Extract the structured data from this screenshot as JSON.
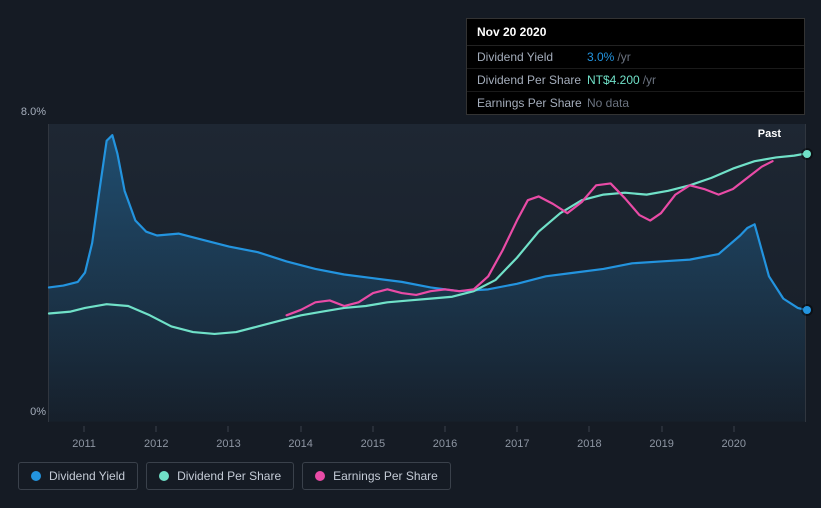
{
  "tooltip": {
    "date": "Nov 20 2020",
    "rows": [
      {
        "label": "Dividend Yield",
        "value": "3.0%",
        "suffix": "/yr",
        "value_color": "#2394df"
      },
      {
        "label": "Dividend Per Share",
        "value": "NT$4.200",
        "suffix": "/yr",
        "value_color": "#70e1c8"
      },
      {
        "label": "Earnings Per Share",
        "value": "No data",
        "suffix": "",
        "value_color": "#6b7380"
      }
    ]
  },
  "chart": {
    "type": "line",
    "background_color": "#151b24",
    "plot_bg_top": "#1e2733",
    "plot_bg_bottom": "#161d27",
    "y_axis": {
      "min": 0,
      "max": 8,
      "labels": [
        {
          "text": "8.0%",
          "value": 8
        },
        {
          "text": "0%",
          "value": 0
        }
      ],
      "color": "#a4adbb",
      "fontsize": 11
    },
    "x_axis": {
      "min": 2010.5,
      "max": 2021,
      "ticks": [
        2011,
        2012,
        2013,
        2014,
        2015,
        2016,
        2017,
        2018,
        2019,
        2020
      ],
      "color": "#8e96a3",
      "fontsize": 11,
      "tick_color": "#3a414b"
    },
    "past_label": "Past",
    "series": [
      {
        "name": "Dividend Yield",
        "color": "#2394df",
        "fill": true,
        "fill_color": "#2394df",
        "fill_opacity_top": 0.35,
        "fill_opacity_bottom": 0.02,
        "line_width": 2.2,
        "end_dot": true,
        "points": [
          [
            2010.5,
            3.6
          ],
          [
            2010.7,
            3.65
          ],
          [
            2010.9,
            3.75
          ],
          [
            2011.0,
            4.0
          ],
          [
            2011.1,
            4.8
          ],
          [
            2011.2,
            6.2
          ],
          [
            2011.3,
            7.55
          ],
          [
            2011.38,
            7.7
          ],
          [
            2011.45,
            7.2
          ],
          [
            2011.55,
            6.2
          ],
          [
            2011.7,
            5.4
          ],
          [
            2011.85,
            5.1
          ],
          [
            2012.0,
            5.0
          ],
          [
            2012.3,
            5.05
          ],
          [
            2012.6,
            4.9
          ],
          [
            2013.0,
            4.7
          ],
          [
            2013.4,
            4.55
          ],
          [
            2013.8,
            4.3
          ],
          [
            2014.2,
            4.1
          ],
          [
            2014.6,
            3.95
          ],
          [
            2015.0,
            3.85
          ],
          [
            2015.4,
            3.75
          ],
          [
            2015.8,
            3.6
          ],
          [
            2016.2,
            3.5
          ],
          [
            2016.6,
            3.55
          ],
          [
            2017.0,
            3.7
          ],
          [
            2017.4,
            3.9
          ],
          [
            2017.8,
            4.0
          ],
          [
            2018.2,
            4.1
          ],
          [
            2018.6,
            4.25
          ],
          [
            2019.0,
            4.3
          ],
          [
            2019.4,
            4.35
          ],
          [
            2019.8,
            4.5
          ],
          [
            2020.1,
            5.0
          ],
          [
            2020.2,
            5.2
          ],
          [
            2020.3,
            5.3
          ],
          [
            2020.4,
            4.6
          ],
          [
            2020.5,
            3.9
          ],
          [
            2020.7,
            3.3
          ],
          [
            2020.9,
            3.05
          ],
          [
            2021.0,
            3.0
          ]
        ]
      },
      {
        "name": "Dividend Per Share",
        "color": "#70e1c8",
        "fill": false,
        "line_width": 2.2,
        "end_dot": true,
        "points": [
          [
            2010.5,
            2.9
          ],
          [
            2010.8,
            2.95
          ],
          [
            2011.0,
            3.05
          ],
          [
            2011.3,
            3.15
          ],
          [
            2011.6,
            3.1
          ],
          [
            2011.9,
            2.85
          ],
          [
            2012.2,
            2.55
          ],
          [
            2012.5,
            2.4
          ],
          [
            2012.8,
            2.35
          ],
          [
            2013.1,
            2.4
          ],
          [
            2013.4,
            2.55
          ],
          [
            2013.7,
            2.7
          ],
          [
            2014.0,
            2.85
          ],
          [
            2014.3,
            2.95
          ],
          [
            2014.6,
            3.05
          ],
          [
            2014.9,
            3.1
          ],
          [
            2015.2,
            3.2
          ],
          [
            2015.5,
            3.25
          ],
          [
            2015.8,
            3.3
          ],
          [
            2016.1,
            3.35
          ],
          [
            2016.4,
            3.5
          ],
          [
            2016.7,
            3.8
          ],
          [
            2017.0,
            4.4
          ],
          [
            2017.3,
            5.1
          ],
          [
            2017.6,
            5.6
          ],
          [
            2017.9,
            5.95
          ],
          [
            2018.2,
            6.1
          ],
          [
            2018.5,
            6.15
          ],
          [
            2018.8,
            6.1
          ],
          [
            2019.1,
            6.2
          ],
          [
            2019.4,
            6.35
          ],
          [
            2019.7,
            6.55
          ],
          [
            2020.0,
            6.8
          ],
          [
            2020.3,
            7.0
          ],
          [
            2020.6,
            7.1
          ],
          [
            2020.85,
            7.15
          ],
          [
            2021.0,
            7.2
          ]
        ]
      },
      {
        "name": "Earnings Per Share",
        "color": "#e94ba6",
        "fill": false,
        "line_width": 2.2,
        "end_dot": false,
        "points": [
          [
            2013.8,
            2.85
          ],
          [
            2014.0,
            3.0
          ],
          [
            2014.2,
            3.2
          ],
          [
            2014.4,
            3.25
          ],
          [
            2014.6,
            3.1
          ],
          [
            2014.8,
            3.2
          ],
          [
            2015.0,
            3.45
          ],
          [
            2015.2,
            3.55
          ],
          [
            2015.4,
            3.45
          ],
          [
            2015.6,
            3.4
          ],
          [
            2015.8,
            3.5
          ],
          [
            2016.0,
            3.55
          ],
          [
            2016.2,
            3.5
          ],
          [
            2016.4,
            3.55
          ],
          [
            2016.6,
            3.9
          ],
          [
            2016.8,
            4.6
          ],
          [
            2017.0,
            5.4
          ],
          [
            2017.15,
            5.95
          ],
          [
            2017.3,
            6.05
          ],
          [
            2017.5,
            5.85
          ],
          [
            2017.7,
            5.6
          ],
          [
            2017.9,
            5.9
          ],
          [
            2018.1,
            6.35
          ],
          [
            2018.3,
            6.4
          ],
          [
            2018.5,
            6.0
          ],
          [
            2018.7,
            5.55
          ],
          [
            2018.85,
            5.4
          ],
          [
            2019.0,
            5.6
          ],
          [
            2019.2,
            6.1
          ],
          [
            2019.4,
            6.35
          ],
          [
            2019.6,
            6.25
          ],
          [
            2019.8,
            6.1
          ],
          [
            2020.0,
            6.25
          ],
          [
            2020.2,
            6.55
          ],
          [
            2020.4,
            6.85
          ],
          [
            2020.55,
            7.0
          ]
        ]
      }
    ]
  },
  "legend": {
    "border_color": "#3a414b",
    "text_color": "#c4cbd6",
    "fontsize": 12,
    "items": [
      {
        "label": "Dividend Yield",
        "color": "#2394df"
      },
      {
        "label": "Dividend Per Share",
        "color": "#70e1c8"
      },
      {
        "label": "Earnings Per Share",
        "color": "#e94ba6"
      }
    ]
  }
}
